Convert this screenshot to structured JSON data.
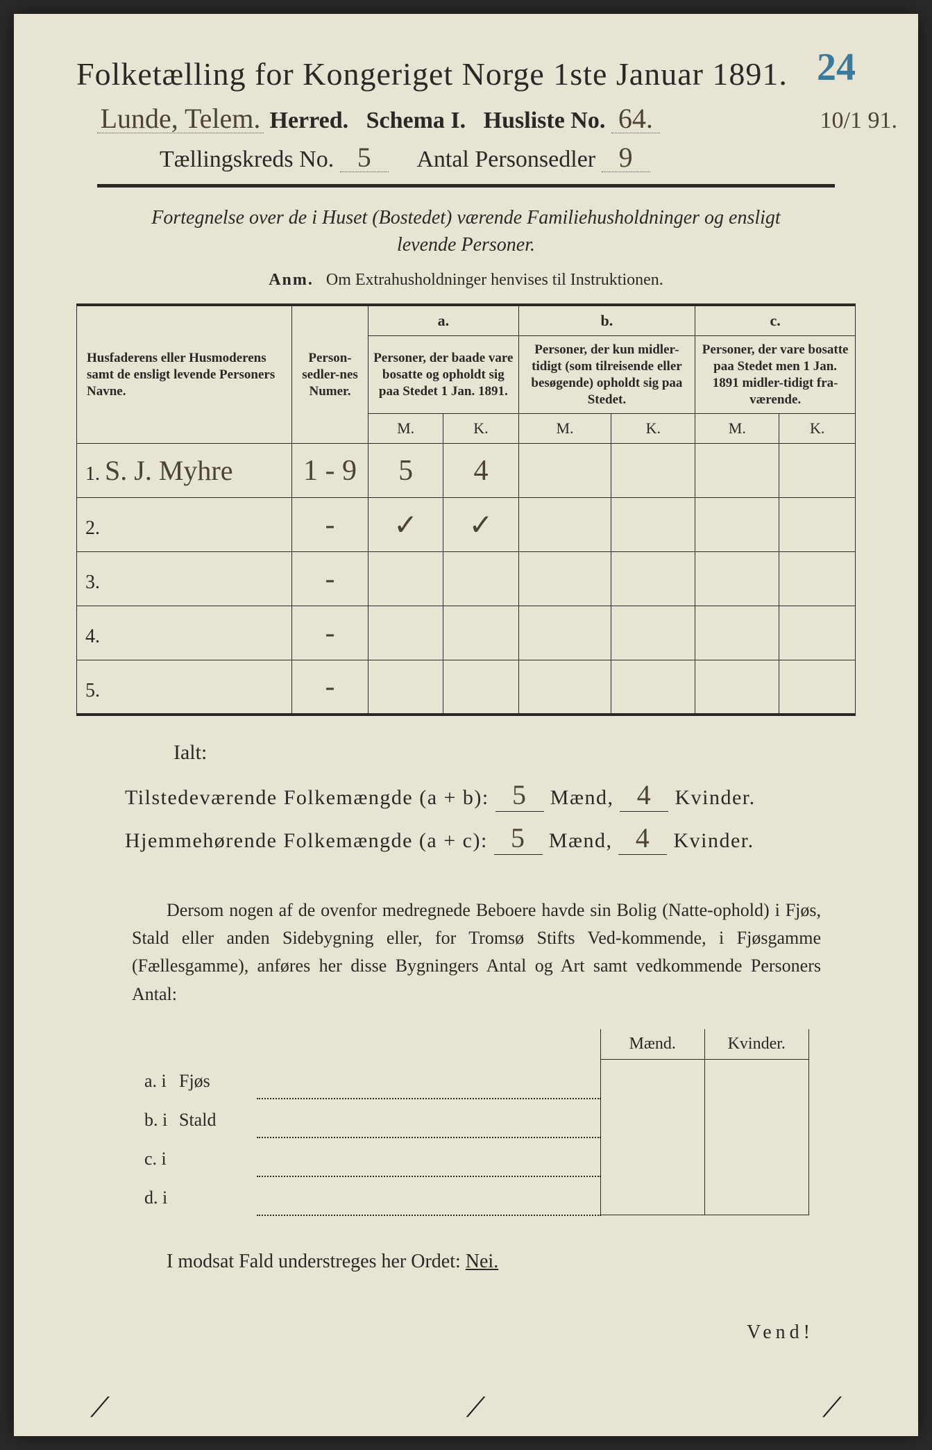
{
  "corner_number": "24",
  "title": "Folketælling for Kongeriget Norge 1ste Januar 1891.",
  "meta": {
    "herred_value": "Lunde, Telem.",
    "herred_label": "Herred.",
    "schema_label": "Schema I.",
    "husliste_label": "Husliste No.",
    "husliste_value": "64.",
    "side_ref": "10/1 91.",
    "kreds_label": "Tællingskreds No.",
    "kreds_value": "5",
    "antal_label": "Antal Personsedler",
    "antal_value": "9"
  },
  "subtitle": "Fortegnelse over de i Huset (Bostedet) værende Familiehusholdninger og ensligt levende Personer.",
  "anm_label": "Anm.",
  "anm_text": "Om Extrahusholdninger henvises til Instruktionen.",
  "headers": {
    "name": "Husfaderens eller Husmoderens samt de ensligt levende Personers Navne.",
    "num": "Person-sedler-nes Numer.",
    "a_top": "a.",
    "a_text": "Personer, der baade vare bosatte og opholdt sig paa Stedet 1 Jan. 1891.",
    "b_top": "b.",
    "b_text": "Personer, der kun midler-tidigt (som tilreisende eller besøgende) opholdt sig paa Stedet.",
    "c_top": "c.",
    "c_text": "Personer, der vare bosatte paa Stedet men 1 Jan. 1891 midler-tidigt fra-værende.",
    "M": "M.",
    "K": "K."
  },
  "rows": [
    {
      "n": "1.",
      "name": "S. J. Myhre",
      "num": "1 - 9",
      "aM": "5",
      "aK": "4",
      "bM": "",
      "bK": "",
      "cM": "",
      "cK": ""
    },
    {
      "n": "2.",
      "name": "",
      "num": "-",
      "aM": "✓",
      "aK": "✓",
      "bM": "",
      "bK": "",
      "cM": "",
      "cK": ""
    },
    {
      "n": "3.",
      "name": "",
      "num": "-",
      "aM": "",
      "aK": "",
      "bM": "",
      "bK": "",
      "cM": "",
      "cK": ""
    },
    {
      "n": "4.",
      "name": "",
      "num": "-",
      "aM": "",
      "aK": "",
      "bM": "",
      "bK": "",
      "cM": "",
      "cK": ""
    },
    {
      "n": "5.",
      "name": "",
      "num": "-",
      "aM": "",
      "aK": "",
      "bM": "",
      "bK": "",
      "cM": "",
      "cK": ""
    }
  ],
  "ialt": "Ialt:",
  "totals": {
    "line1_label": "Tilstedeværende Folkemængde (a + b):",
    "line2_label": "Hjemmehørende Folkemængde (a + c):",
    "maend": "Mænd,",
    "kvinder": "Kvinder.",
    "l1_m": "5",
    "l1_k": "4",
    "l2_m": "5",
    "l2_k": "4"
  },
  "para": "Dersom nogen af de ovenfor medregnede Beboere havde sin Bolig (Natte-ophold) i Fjøs, Stald eller anden Sidebygning eller, for Tromsø Stifts Ved-kommende, i Fjøsgamme (Fællesgamme), anføres her disse Bygningers Antal og Art samt vedkommende Personers Antal:",
  "lower": {
    "h_maend": "Mænd.",
    "h_kvinder": "Kvinder.",
    "rows": [
      {
        "lbl": "a.  i",
        "word": "Fjøs"
      },
      {
        "lbl": "b.  i",
        "word": "Stald"
      },
      {
        "lbl": "c.  i",
        "word": ""
      },
      {
        "lbl": "d.  i",
        "word": ""
      }
    ]
  },
  "nei_line": "I modsat Fald understreges her Ordet:",
  "nei": "Nei.",
  "vend": "Vend!",
  "colors": {
    "paper": "#e8e4d4",
    "ink": "#2a2826",
    "pencil": "#4a4438",
    "blue": "#3a7a9a"
  }
}
